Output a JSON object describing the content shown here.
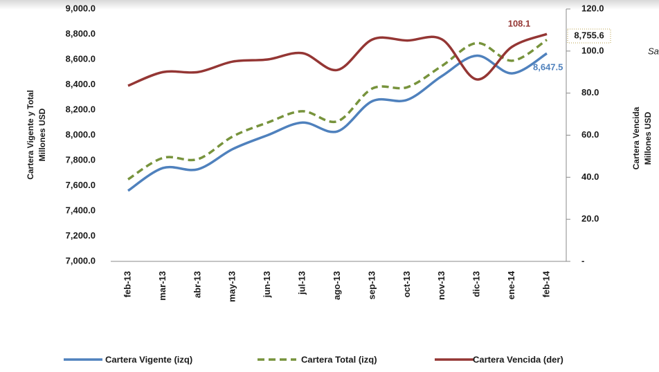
{
  "chart_data": {
    "type": "line",
    "categories": [
      "feb-13",
      "mar-13",
      "abr-13",
      "may-13",
      "jun-13",
      "jul-13",
      "ago-13",
      "sep-13",
      "oct-13",
      "nov-13",
      "dic-13",
      "ene-14",
      "feb-14"
    ],
    "series": [
      {
        "name": "Cartera Vigente (izq)",
        "color": "#4f81bd",
        "dash": false,
        "values": [
          7560,
          7740,
          7730,
          7890,
          8000,
          8100,
          8030,
          8270,
          8280,
          8470,
          8630,
          8490,
          8647.5
        ],
        "value_labels": [
          null,
          null,
          null,
          null,
          null,
          null,
          null,
          null,
          null,
          null,
          null,
          null,
          "8,647.5"
        ]
      },
      {
        "name": "Cartera Total (izq)",
        "color": "#77933c",
        "dash": true,
        "values": [
          7650,
          7820,
          7810,
          7990,
          8100,
          8190,
          8110,
          8370,
          8380,
          8550,
          8730,
          8590,
          8755.6
        ],
        "value_labels": [
          null,
          null,
          null,
          null,
          null,
          null,
          null,
          null,
          null,
          null,
          null,
          null,
          "8,755.6"
        ]
      },
      {
        "name": "Cartera Vencida (der)",
        "color": "#943634",
        "dash": false,
        "axis": "y2",
        "values": [
          83.5,
          90,
          90,
          95,
          96,
          99,
          91,
          105.5,
          105,
          105.5,
          86.5,
          102,
          108.1
        ],
        "value_labels": [
          null,
          null,
          null,
          null,
          null,
          null,
          null,
          null,
          null,
          null,
          null,
          null,
          "108.1"
        ]
      }
    ],
    "ylim": [
      7000,
      9000
    ],
    "yticks": [
      {
        "value": 7000,
        "label": "7,000.0"
      },
      {
        "value": 7200,
        "label": "7,200.0"
      },
      {
        "value": 7400,
        "label": "7,400.0"
      },
      {
        "value": 7600,
        "label": "7,600.0"
      },
      {
        "value": 7800,
        "label": "7,800.0"
      },
      {
        "value": 8000,
        "label": "8,000.0"
      },
      {
        "value": 8200,
        "label": "8,200.0"
      },
      {
        "value": 8400,
        "label": "8,400.0"
      },
      {
        "value": 8600,
        "label": "8,600.0"
      },
      {
        "value": 8800,
        "label": "8,800.0"
      },
      {
        "value": 9000,
        "label": "9,000.0"
      }
    ],
    "y2lim": [
      0,
      120
    ],
    "y2ticks": [
      {
        "value": 0,
        "label": "-"
      },
      {
        "value": 20,
        "label": "20.0"
      },
      {
        "value": 40,
        "label": "40.0"
      },
      {
        "value": 60,
        "label": "60.0"
      },
      {
        "value": 80,
        "label": "80.0"
      },
      {
        "value": 100,
        "label": "100.0"
      },
      {
        "value": 120,
        "label": "120.0"
      }
    ],
    "ylabel": [
      "Cartera Vigente y Total",
      "Millones USD"
    ],
    "y2label": [
      "Cartera Vencida",
      "Millones USD"
    ],
    "side_note": "Sa",
    "grid": false
  }
}
